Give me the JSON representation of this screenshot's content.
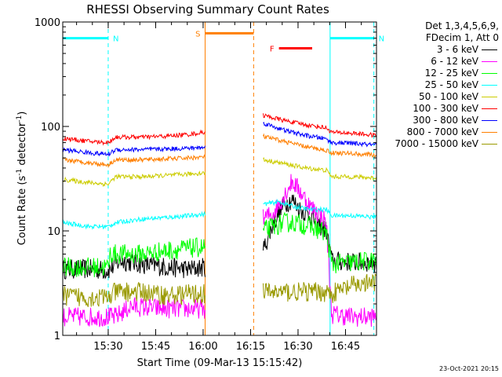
{
  "chart_data": {
    "type": "line",
    "title": "RHESSI Observing Summary Count Rates",
    "xlabel": "Start Time (09-Mar-13 15:15:42)",
    "ylabel_prefix": "Count Rate (s",
    "ylabel_sup1": "-1",
    "ylabel_mid": " detector",
    "ylabel_sup2": "-1",
    "ylabel_suffix": ")",
    "yscale": "log",
    "ylim": [
      1,
      1000
    ],
    "xlim": [
      0,
      5950
    ],
    "ytick_values": [
      1,
      10,
      100,
      1000
    ],
    "ytick_labels": [
      "1",
      "10",
      "100",
      "1000"
    ],
    "xtick_values": [
      862,
      1762,
      2662,
      3562,
      4462,
      5362
    ],
    "xtick_labels": [
      "15:30",
      "15:45",
      "16:00",
      "16:15",
      "16:30",
      "16:45"
    ],
    "legend_header": [
      "Det 1,3,4,5,6,9,",
      "FDecim 1, Att 0"
    ],
    "legend_position": "right",
    "series": [
      {
        "name": "3 - 6 keV",
        "color": "#000000",
        "segments": [
          [
            [
              0,
              4.3
            ],
            [
              500,
              4.3
            ],
            [
              862,
              4.2
            ],
            [
              1100,
              5.2
            ],
            [
              1500,
              4.8
            ],
            [
              2000,
              4.5
            ],
            [
              2400,
              4.3
            ],
            [
              2700,
              4.5
            ]
          ],
          [
            [
              3800,
              6.5
            ],
            [
              4000,
              12
            ],
            [
              4200,
              18
            ],
            [
              4350,
              20
            ],
            [
              4500,
              16
            ],
            [
              4700,
              14
            ],
            [
              4900,
              11
            ],
            [
              5000,
              10
            ],
            [
              5100,
              5.2
            ],
            [
              5500,
              5.0
            ],
            [
              5950,
              5.0
            ]
          ]
        ]
      },
      {
        "name": "6 - 12 keV",
        "color": "#ff00ff",
        "segments": [
          [
            [
              0,
              1.5
            ],
            [
              500,
              1.5
            ],
            [
              1000,
              1.5
            ],
            [
              1300,
              1.9
            ],
            [
              1900,
              1.8
            ],
            [
              2400,
              1.8
            ],
            [
              2700,
              1.8
            ]
          ],
          [
            [
              3800,
              13
            ],
            [
              4000,
              15
            ],
            [
              4200,
              22
            ],
            [
              4350,
              30
            ],
            [
              4500,
              24
            ],
            [
              4700,
              17
            ],
            [
              4900,
              14
            ],
            [
              5000,
              12
            ],
            [
              5100,
              1.6
            ],
            [
              5500,
              1.5
            ],
            [
              5950,
              1.5
            ]
          ]
        ]
      },
      {
        "name": "12 - 25 keV",
        "color": "#00ff00",
        "segments": [
          [
            [
              0,
              4.5
            ],
            [
              500,
              4.5
            ],
            [
              862,
              4.5
            ],
            [
              900,
              6.0
            ],
            [
              1500,
              6.0
            ],
            [
              2000,
              6.5
            ],
            [
              2400,
              6.8
            ],
            [
              2700,
              7.0
            ]
          ],
          [
            [
              3800,
              10
            ],
            [
              4000,
              11
            ],
            [
              4200,
              12
            ],
            [
              4400,
              12
            ],
            [
              4700,
              11
            ],
            [
              4900,
              10
            ],
            [
              5000,
              9.5
            ],
            [
              5100,
              4.8
            ],
            [
              5500,
              5.0
            ],
            [
              5950,
              5.2
            ]
          ]
        ]
      },
      {
        "name": "25 - 50 keV",
        "color": "#00ffff",
        "segments": [
          [
            [
              0,
              12
            ],
            [
              500,
              11
            ],
            [
              862,
              11
            ],
            [
              1000,
              12
            ],
            [
              1500,
              13
            ],
            [
              2000,
              13.5
            ],
            [
              2400,
              14
            ],
            [
              2700,
              14.5
            ]
          ],
          [
            [
              3800,
              18
            ],
            [
              4100,
              19
            ],
            [
              4400,
              17
            ],
            [
              4700,
              16
            ],
            [
              5000,
              16
            ],
            [
              5100,
              14
            ],
            [
              5500,
              14
            ],
            [
              5950,
              13.5
            ]
          ]
        ]
      },
      {
        "name": "50 - 100 keV",
        "color": "#cccc00",
        "segments": [
          [
            [
              0,
              31
            ],
            [
              500,
              29
            ],
            [
              862,
              28
            ],
            [
              1000,
              33
            ],
            [
              1500,
              33
            ],
            [
              2000,
              34
            ],
            [
              2400,
              35
            ],
            [
              2700,
              36
            ]
          ],
          [
            [
              3800,
              48
            ],
            [
              4200,
              44
            ],
            [
              4600,
              40
            ],
            [
              5000,
              38
            ],
            [
              5100,
              33
            ],
            [
              5500,
              33
            ],
            [
              5950,
              32
            ]
          ]
        ]
      },
      {
        "name": "100 - 300 keV",
        "color": "#ff0000",
        "segments": [
          [
            [
              0,
              77
            ],
            [
              500,
              72
            ],
            [
              862,
              70
            ],
            [
              1000,
              79
            ],
            [
              1500,
              79
            ],
            [
              2000,
              81
            ],
            [
              2400,
              84
            ],
            [
              2700,
              88
            ]
          ],
          [
            [
              3800,
              128
            ],
            [
              4200,
              114
            ],
            [
              4600,
              104
            ],
            [
              5000,
              97
            ],
            [
              5100,
              88
            ],
            [
              5500,
              86
            ],
            [
              5950,
              82
            ]
          ]
        ]
      },
      {
        "name": "300 - 800 keV",
        "color": "#0000ff",
        "segments": [
          [
            [
              0,
              60
            ],
            [
              500,
              56
            ],
            [
              862,
              54
            ],
            [
              1000,
              60
            ],
            [
              1500,
              60
            ],
            [
              2000,
              61
            ],
            [
              2400,
              62
            ],
            [
              2700,
              63
            ]
          ],
          [
            [
              3800,
              108
            ],
            [
              4200,
              92
            ],
            [
              4600,
              82
            ],
            [
              5000,
              76
            ],
            [
              5100,
              70
            ],
            [
              5500,
              69
            ],
            [
              5950,
              66
            ]
          ]
        ]
      },
      {
        "name": "800 - 7000 keV",
        "color": "#ff7f00",
        "segments": [
          [
            [
              0,
              48
            ],
            [
              500,
              45
            ],
            [
              862,
              43
            ],
            [
              1000,
              48
            ],
            [
              1500,
              48
            ],
            [
              2000,
              49
            ],
            [
              2400,
              50
            ],
            [
              2700,
              51
            ]
          ],
          [
            [
              3800,
              80
            ],
            [
              4200,
              72
            ],
            [
              4600,
              64
            ],
            [
              5000,
              59
            ],
            [
              5100,
              56
            ],
            [
              5500,
              55
            ],
            [
              5950,
              53
            ]
          ]
        ]
      },
      {
        "name": "7000 - 15000 keV",
        "color": "#999900",
        "segments": [
          [
            [
              0,
              2.4
            ],
            [
              500,
              2.3
            ],
            [
              862,
              2.3
            ],
            [
              1000,
              2.6
            ],
            [
              1500,
              2.6
            ],
            [
              2000,
              2.4
            ],
            [
              2400,
              2.5
            ],
            [
              2700,
              2.5
            ]
          ],
          [
            [
              3800,
              2.6
            ],
            [
              4200,
              2.6
            ],
            [
              4600,
              2.6
            ],
            [
              5000,
              2.6
            ],
            [
              5100,
              2.5
            ],
            [
              5500,
              3.0
            ],
            [
              5950,
              3.2
            ]
          ]
        ]
      }
    ],
    "annotations": [
      {
        "label": "N",
        "color": "#00ffff",
        "x_start": 0,
        "x_end": 862,
        "y": 700
      },
      {
        "label": "N",
        "color": "#00ffff",
        "x_start": 5070,
        "x_end": 5900,
        "y": 700
      },
      {
        "label": "S",
        "color": "#ff7f00",
        "x_start": 2700,
        "x_end": 3620,
        "y": 780
      },
      {
        "label": "F",
        "color": "#ff0000",
        "x_start": 4100,
        "x_end": 4730,
        "y": 560
      }
    ],
    "vertical_markers": [
      {
        "x": 0,
        "color": "#00ffff",
        "style": "solid"
      },
      {
        "x": 862,
        "color": "#00ffff",
        "style": "dashed"
      },
      {
        "x": 2700,
        "color": "#ff7f00",
        "style": "solid"
      },
      {
        "x": 3620,
        "color": "#ff7f00",
        "style": "dashed"
      },
      {
        "x": 5070,
        "color": "#00ffff",
        "style": "solid"
      },
      {
        "x": 5900,
        "color": "#00ffff",
        "style": "dashed"
      }
    ]
  },
  "timestamp": "23-Oct-2021 20:15"
}
